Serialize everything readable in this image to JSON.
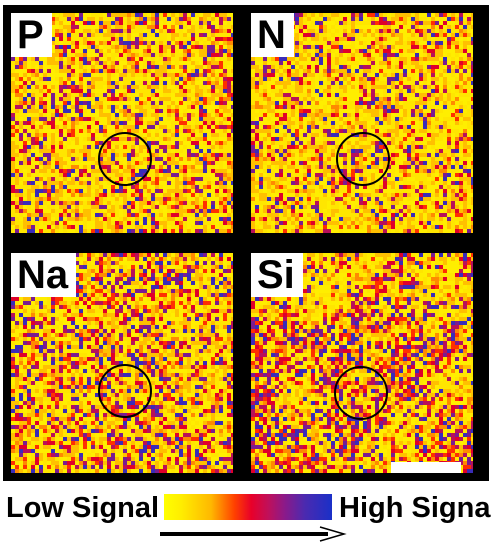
{
  "panels": [
    {
      "label": "P"
    },
    {
      "label": "N"
    },
    {
      "label": "Na"
    },
    {
      "label": "Si"
    }
  ],
  "legend": {
    "low_label": "Low Signal",
    "high_label": "High Signal"
  },
  "colors": {
    "low": "#ffff00",
    "mid": "#e8002a",
    "high": "#1a30c8",
    "frame": "#000000"
  }
}
